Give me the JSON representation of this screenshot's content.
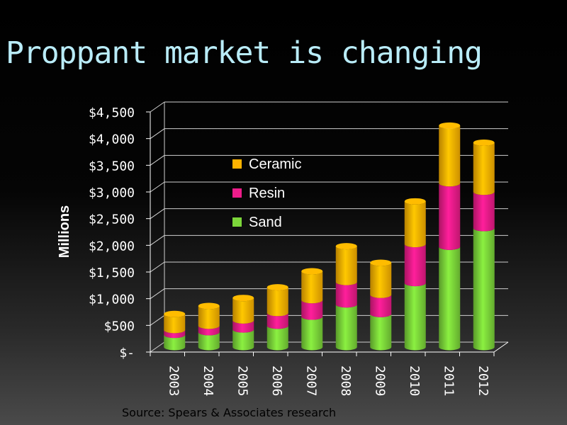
{
  "slide": {
    "title": "Proppant market is changing",
    "source": "Source:  Spears & Associates research"
  },
  "chart_data": {
    "type": "bar",
    "stacked": true,
    "three_d": true,
    "title": "",
    "xlabel": "",
    "ylabel": "Millions",
    "ylim": [
      0,
      4500
    ],
    "y_ticks": [
      0,
      500,
      1000,
      1500,
      2000,
      2500,
      3000,
      3500,
      4000,
      4500
    ],
    "y_tick_labels": [
      "$-",
      "$500",
      "$1,000",
      "$1,500",
      "$2,000",
      "$2,500",
      "$3,000",
      "$3,500",
      "$4,000",
      "$4,500"
    ],
    "categories": [
      "2003",
      "2004",
      "2005",
      "2006",
      "2007",
      "2008",
      "2009",
      "2010",
      "2011",
      "2012"
    ],
    "series": [
      {
        "name": "Sand",
        "color": "#7cd63a",
        "values": [
          230,
          280,
          330,
          400,
          570,
          800,
          620,
          1200,
          1880,
          2230
        ]
      },
      {
        "name": "Resin",
        "color": "#ee1c8a",
        "values": [
          90,
          120,
          170,
          240,
          310,
          420,
          360,
          730,
          1190,
          680
        ]
      },
      {
        "name": "Ceramic",
        "color": "#ffb300",
        "values": [
          300,
          370,
          420,
          480,
          540,
          670,
          600,
          800,
          1080,
          920
        ]
      }
    ],
    "legend": {
      "placement": "inside-top-left",
      "order": [
        "Ceramic",
        "Resin",
        "Sand"
      ]
    },
    "grid": true
  }
}
